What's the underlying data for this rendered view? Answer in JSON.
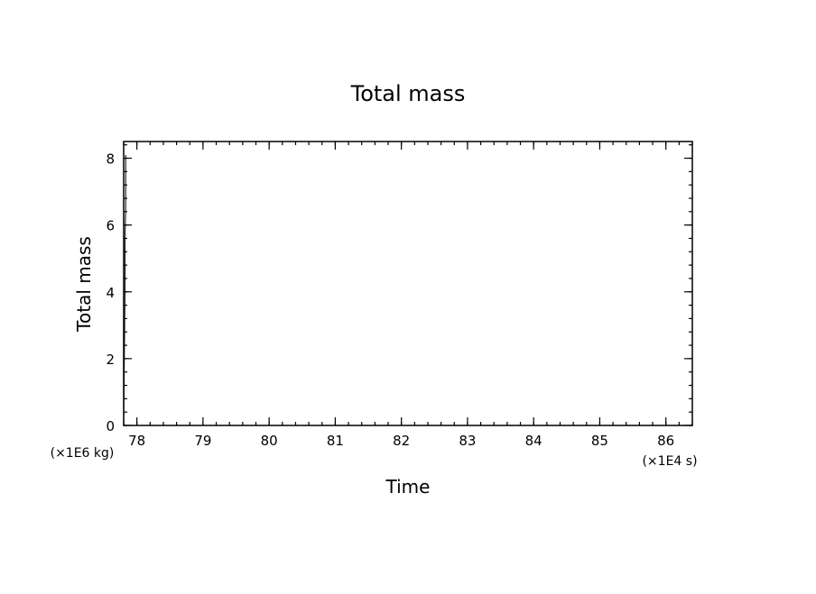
{
  "chart_data": {
    "type": "line",
    "title": "Total mass",
    "xlabel": "Time",
    "ylabel": "Total mass",
    "x_multiplier_label": "(×1E4 s)",
    "y_multiplier_label": "(×1E6 kg)",
    "xlim": [
      77.8,
      86.4
    ],
    "ylim": [
      0,
      8.5
    ],
    "x_ticks": [
      "78",
      "79",
      "80",
      "81",
      "82",
      "83",
      "84",
      "85",
      "86"
    ],
    "y_ticks": [
      "0",
      "2",
      "4",
      "6",
      "8"
    ],
    "x_minor_step": 0.2,
    "y_minor_step": 0.4,
    "grid": false,
    "series": [
      {
        "x": [
          77.8,
          77.81,
          77.82,
          77.82,
          77.83,
          77.83
        ],
        "y": [
          0.0,
          2.0,
          4.0,
          5.5,
          6.5,
          8.1
        ]
      }
    ],
    "colors": {
      "axis": "#000000",
      "line": "#000000",
      "background": "#ffffff"
    }
  }
}
